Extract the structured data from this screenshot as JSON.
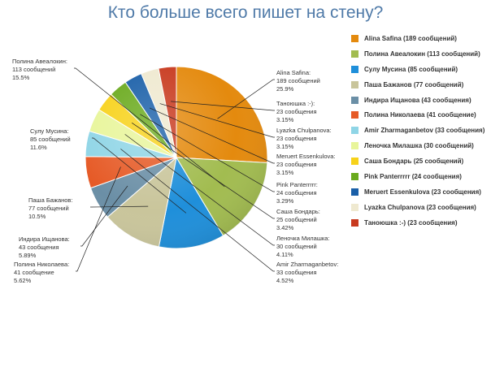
{
  "chart_data": {
    "type": "pie",
    "title": "Кто больше всего пишет на стену?",
    "slices": [
      {
        "legend": "Alina Safina (189 сообщений)",
        "name": "Alina Safina:",
        "value_text": "189 сообщений",
        "percent_text": "25.9%",
        "value": 189,
        "color": "#e48a0e"
      },
      {
        "legend": "Полина Авеалокин (113 сообщений)",
        "name": "Полина Авеалокин:",
        "value_text": "113 сообщений",
        "percent_text": "15.5%",
        "value": 113,
        "color": "#a2bc50"
      },
      {
        "legend": "Сулу Мусина (85 сообщений)",
        "name": "Сулу Мусина:",
        "value_text": "85 сообщений",
        "percent_text": "11.6%",
        "value": 85,
        "color": "#1f8fda"
      },
      {
        "legend": "Паша Бажанов (77 сообщений)",
        "name": "Паша Бажанов:",
        "value_text": "77 сообщений",
        "percent_text": "10.5%",
        "value": 77,
        "color": "#c9c59b"
      },
      {
        "legend": "Индира Ищанова (43 сообщения)",
        "name": "Индира Ищанова:",
        "value_text": "43 сообщения",
        "percent_text": "5.89%",
        "value": 43,
        "color": "#6b8fa6"
      },
      {
        "legend": "Полина Николаева (41 сообщение)",
        "name": "Полина Николаева:",
        "value_text": "41 сообщение",
        "percent_text": "5.62%",
        "value": 41,
        "color": "#e65a26"
      },
      {
        "legend": "Amir Zharmaganbetov (33 сообщения)",
        "name": "Amir Zharmaganbetov:",
        "value_text": "33 сообщения",
        "percent_text": "4.52%",
        "value": 33,
        "color": "#8fd5e6"
      },
      {
        "legend": "Леночка Милашка (30 сообщений)",
        "name": "Леночка Милашка:",
        "value_text": "30 сообщений",
        "percent_text": "4.11%",
        "value": 30,
        "color": "#e8f59a"
      },
      {
        "legend": "Саша Бондарь (25 сообщений)",
        "name": "Саша Бондарь:",
        "value_text": "25 сообщений",
        "percent_text": "3.42%",
        "value": 25,
        "color": "#f7d21a"
      },
      {
        "legend": "Pink Panterrrrr (24 сообщения)",
        "name": "Pink Panterrrrr:",
        "value_text": "24 сообщения",
        "percent_text": "3.29%",
        "value": 24,
        "color": "#6aaa1d"
      },
      {
        "legend": "Meruert Essenkulova (23 сообщения)",
        "name": "Meruert Essenkulova:",
        "value_text": "23 сообщения",
        "percent_text": "3.15%",
        "value": 23,
        "color": "#1a5fa8"
      },
      {
        "legend": "Lyazka Chulpanova (23 сообщения)",
        "name": "Lyazka Chulpanova:",
        "value_text": "23 сообщения",
        "percent_text": "3.15%",
        "value": 23,
        "color": "#efe9d0"
      },
      {
        "legend": "Таноюшка :-) (23 сообщения)",
        "name": "Таноюшка :-):",
        "value_text": "23 сообщения",
        "percent_text": "3.15%",
        "value": 23,
        "color": "#c83a1f"
      }
    ]
  }
}
